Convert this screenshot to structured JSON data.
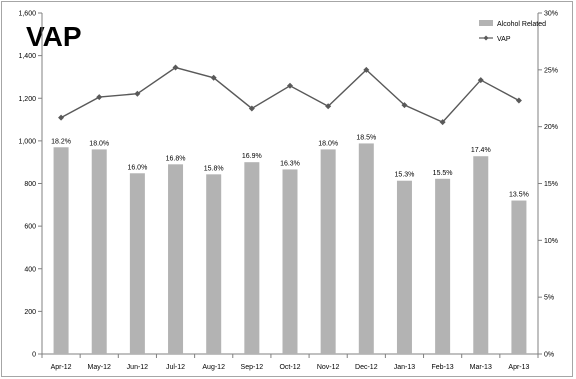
{
  "chart_data": {
    "type": "bar+line",
    "title": "VAP",
    "categories": [
      "Apr-12",
      "May-12",
      "Jun-12",
      "Jul-12",
      "Aug-12",
      "Sep-12",
      "Oct-12",
      "Nov-12",
      "Dec-12",
      "Jan-13",
      "Feb-13",
      "Mar-13",
      "Apr-13"
    ],
    "series": [
      {
        "name": "Alcohol Related",
        "type": "bar",
        "axis": "left",
        "color": "#b3b3b3",
        "values": [
          970,
          960,
          848,
          890,
          843,
          900,
          866,
          960,
          988,
          813,
          822,
          928,
          720
        ],
        "data_labels": [
          "18.2%",
          "18.0%",
          "16.0%",
          "16.8%",
          "15.8%",
          "16.9%",
          "16.3%",
          "18.0%",
          "18.5%",
          "15.3%",
          "15.5%",
          "17.4%",
          "13.5%"
        ]
      },
      {
        "name": "VAP",
        "type": "line",
        "axis": "right",
        "color": "#595959",
        "marker": "diamond",
        "values": [
          20.8,
          22.6,
          22.9,
          25.2,
          24.3,
          21.6,
          23.6,
          21.8,
          25.0,
          21.9,
          20.4,
          24.1,
          22.3
        ]
      }
    ],
    "y_left": {
      "min": 0,
      "max": 1600,
      "ticks": [
        "0",
        "200",
        "400",
        "600",
        "800",
        "1,000",
        "1,200",
        "1,400",
        "1,600"
      ]
    },
    "y_right": {
      "min": 0,
      "max": 30,
      "ticks": [
        "0%",
        "5%",
        "10%",
        "15%",
        "20%",
        "25%",
        "30%"
      ]
    },
    "grid": false,
    "legend": "top-right"
  }
}
